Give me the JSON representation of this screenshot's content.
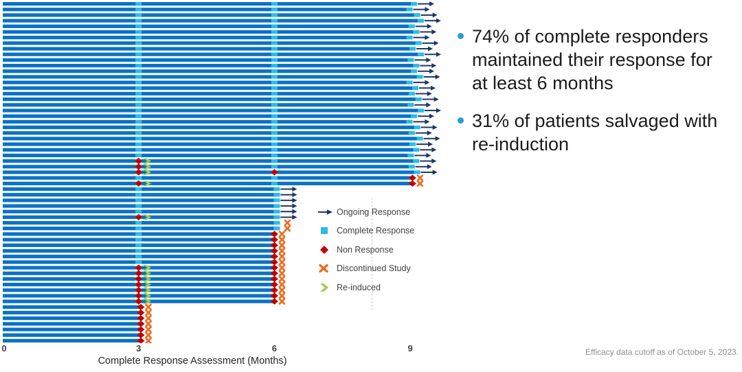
{
  "insights": {
    "bullet_color": "#2E9BD5",
    "items": [
      {
        "text": "74% of complete responders maintained their response for at least 6 months"
      },
      {
        "text": "31% of patients salvaged with re-induction"
      }
    ]
  },
  "footnote": "Efficacy data cutoff as of October 5, 2023.",
  "chart_data": {
    "type": "bar",
    "variant": "swimmer-plot",
    "title": "",
    "xlabel": "Complete Response Assessment (Months)",
    "ylabel": "",
    "x_ticks": [
      "0",
      "3",
      "6",
      "9"
    ],
    "xlim": [
      0,
      9.6
    ],
    "grid": false,
    "legend_position": "lower-center-right",
    "colors": {
      "bar": "#0A72C6",
      "complete_response": "#2BBDE9",
      "ongoing_arrow": "#1F3864",
      "non_response": "#C00000",
      "discontinued": "#EE6B1F",
      "re_induced": "#9DCE52"
    },
    "legend": [
      {
        "symbol": "arrow",
        "label": "Ongoing Response"
      },
      {
        "symbol": "square",
        "label": "Complete Response"
      },
      {
        "symbol": "diamond",
        "label": "Non Response"
      },
      {
        "symbol": "x",
        "label": "Discontinued Study"
      },
      {
        "symbol": "chevron",
        "label": "Re-induced"
      }
    ],
    "row_notes": "len = bar length in months; m3/m6 = assessment result at month 3/6 (cr=complete response, nr=non response); ri = re-induced after month-3 non response; tip = marker at bar end; end = terminal symbol",
    "row_groups": [
      {
        "count": 28,
        "lens": [
          9.15,
          9.05,
          9.22,
          9.3,
          9.1,
          9.2,
          9.05,
          9.25,
          9.12,
          9.3,
          9.08,
          9.2,
          9.15,
          9.28,
          9.05,
          9.18,
          9.1,
          9.25,
          9.08,
          9.3,
          9.15,
          9.05,
          9.22,
          9.1,
          9.28,
          9.12,
          9.2,
          9.08
        ],
        "row": {
          "m3": "cr",
          "m6": "cr",
          "tip": "cr",
          "end": "arrow"
        }
      },
      {
        "count": 2,
        "lens": [
          9.2,
          9.1
        ],
        "row": {
          "m3": "nr",
          "ri": true,
          "m6": "cr",
          "tip": "cr",
          "end": "arrow"
        }
      },
      {
        "count": 1,
        "lens": [
          9.22
        ],
        "row": {
          "m3": "nr",
          "ri": true,
          "m6": "nr",
          "tip": "cr",
          "end": "arrow"
        }
      },
      {
        "count": 1,
        "lens": [
          9.05
        ],
        "row": {
          "m3": "cr",
          "m6": "cr",
          "tip": "nr",
          "end": "x"
        }
      },
      {
        "count": 1,
        "lens": [
          9.05
        ],
        "row": {
          "m3": "nr",
          "ri": true,
          "m6": "cr",
          "tip": "nr",
          "end": "x"
        }
      },
      {
        "count": 5,
        "lens": [
          6.12
        ],
        "row": {
          "m3": "cr",
          "m6": null,
          "tip": "cr",
          "end": "arrow"
        }
      },
      {
        "count": 1,
        "lens": [
          6.12
        ],
        "row": {
          "m3": "nr",
          "ri": true,
          "m6": null,
          "tip": "cr",
          "end": "arrow"
        }
      },
      {
        "count": 2,
        "lens": [
          6.12
        ],
        "row": {
          "m3": "cr",
          "m6": null,
          "tip": "cr",
          "end": "x"
        }
      },
      {
        "count": 6,
        "lens": [
          6.0
        ],
        "row": {
          "m3": "cr",
          "m6": null,
          "tip": "nr",
          "end": "x"
        }
      },
      {
        "count": 7,
        "lens": [
          6.0
        ],
        "row": {
          "m3": "nr",
          "ri": true,
          "m6": null,
          "tip": "nr",
          "end": "x"
        }
      },
      {
        "count": 7,
        "lens": [
          3.05
        ],
        "row": {
          "m3": null,
          "m6": null,
          "tip": "nr",
          "end": "x"
        }
      }
    ]
  }
}
